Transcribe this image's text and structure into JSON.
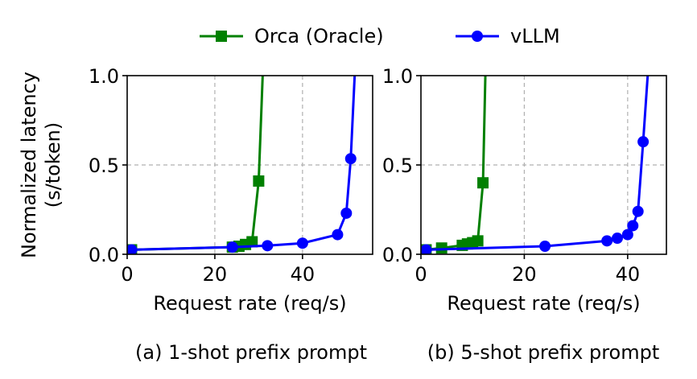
{
  "figure": {
    "ylabel_line1": "Normalized latency",
    "ylabel_line2": "(s/token)"
  },
  "legend": {
    "items": [
      {
        "label": "Orca (Oracle)",
        "color": "#008000",
        "marker": "square"
      },
      {
        "label": "vLLM",
        "color": "#0000ff",
        "marker": "circle"
      }
    ]
  },
  "chart_data": [
    {
      "type": "line",
      "caption": "(a) 1-shot prefix prompt",
      "xlabel": "Request rate (req/s)",
      "ylabel": "Normalized latency (s/token)",
      "xlim": [
        0,
        56
      ],
      "ylim": [
        0,
        1.0
      ],
      "xticks": [
        0,
        20,
        40
      ],
      "yticks": [
        0.0,
        0.5,
        1.0
      ],
      "xtick_labels": [
        "0",
        "20",
        "40"
      ],
      "ytick_labels": [
        "0.0",
        "0.5",
        "1.0"
      ],
      "grid": true,
      "series": [
        {
          "name": "Orca (Oracle)",
          "color": "#008000",
          "marker": "square",
          "x": [
            1,
            24,
            25.5,
            27,
            28.5,
            30,
            31
          ],
          "y": [
            0.025,
            0.04,
            0.045,
            0.055,
            0.07,
            0.41,
            1.05
          ]
        },
        {
          "name": "vLLM",
          "color": "#0000ff",
          "marker": "circle",
          "x": [
            1,
            24,
            32,
            40,
            48,
            50,
            51,
            52
          ],
          "y": [
            0.025,
            0.04,
            0.048,
            0.062,
            0.11,
            0.23,
            0.535,
            1.05
          ]
        }
      ]
    },
    {
      "type": "line",
      "caption": "(b) 5-shot prefix prompt",
      "xlabel": "Request rate (req/s)",
      "ylabel": "Normalized latency (s/token)",
      "xlim": [
        0,
        47.5
      ],
      "ylim": [
        0,
        1.0
      ],
      "xticks": [
        0,
        20,
        40
      ],
      "yticks": [
        0.0,
        0.5,
        1.0
      ],
      "xtick_labels": [
        "0",
        "20",
        "40"
      ],
      "ytick_labels": [
        "0.0",
        "0.5",
        "1.0"
      ],
      "grid": true,
      "series": [
        {
          "name": "Orca (Oracle)",
          "color": "#008000",
          "marker": "square",
          "x": [
            1,
            4,
            8,
            9,
            10,
            11,
            12,
            12.5
          ],
          "y": [
            0.025,
            0.035,
            0.05,
            0.058,
            0.065,
            0.075,
            0.4,
            1.05
          ]
        },
        {
          "name": "vLLM",
          "color": "#0000ff",
          "marker": "circle",
          "x": [
            1,
            24,
            36,
            38,
            40,
            41,
            42,
            43,
            44
          ],
          "y": [
            0.025,
            0.045,
            0.075,
            0.09,
            0.11,
            0.16,
            0.24,
            0.63,
            1.05
          ]
        }
      ]
    }
  ]
}
